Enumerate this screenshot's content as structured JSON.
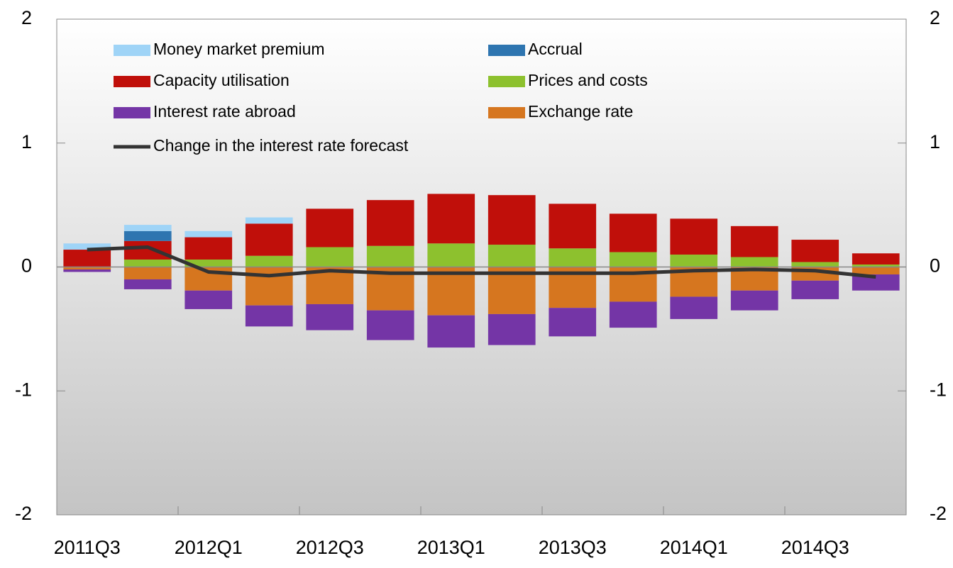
{
  "chart_data": {
    "type": "bar",
    "categories": [
      "2011Q3",
      null,
      "2012Q1",
      null,
      "2012Q3",
      null,
      "2013Q1",
      null,
      "2013Q3",
      null,
      "2014Q1",
      null,
      "2014Q3",
      null
    ],
    "series": [
      {
        "name": "Money market premium",
        "color": "#9fd4f7",
        "values": [
          0.05,
          0.05,
          0.05,
          0.05,
          0,
          0,
          0,
          0,
          0,
          0,
          0,
          0,
          0,
          0
        ]
      },
      {
        "name": "Accrual",
        "color": "#2e75b0",
        "values": [
          0,
          0.08,
          0,
          0,
          0,
          0,
          0,
          0,
          0,
          0,
          0,
          0,
          0,
          0
        ]
      },
      {
        "name": "Capacity utilisation",
        "color": "#c00f0a",
        "values": [
          0.14,
          0.15,
          0.18,
          0.26,
          0.31,
          0.37,
          0.4,
          0.4,
          0.36,
          0.31,
          0.29,
          0.25,
          0.18,
          0.09
        ]
      },
      {
        "name": "Prices and costs",
        "color": "#8dc12e",
        "values": [
          0,
          0.06,
          0.06,
          0.09,
          0.16,
          0.17,
          0.19,
          0.18,
          0.15,
          0.12,
          0.1,
          0.08,
          0.04,
          0.02
        ]
      },
      {
        "name": "Interest rate abroad",
        "color": "#7435a6",
        "values": [
          -0.02,
          -0.08,
          -0.15,
          -0.17,
          -0.21,
          -0.24,
          -0.26,
          -0.25,
          -0.23,
          -0.21,
          -0.18,
          -0.16,
          -0.15,
          -0.13
        ]
      },
      {
        "name": "Exchange rate",
        "color": "#d6761f",
        "values": [
          -0.02,
          -0.1,
          -0.19,
          -0.31,
          -0.3,
          -0.35,
          -0.39,
          -0.38,
          -0.33,
          -0.28,
          -0.24,
          -0.19,
          -0.11,
          -0.06
        ]
      },
      {
        "name": "Change in the interest rate forecast",
        "type": "line",
        "color": "#333333",
        "values": [
          0.14,
          0.16,
          -0.04,
          -0.07,
          -0.03,
          -0.05,
          -0.05,
          -0.05,
          -0.05,
          -0.05,
          -0.03,
          -0.02,
          -0.03,
          -0.08
        ]
      }
    ],
    "ylim": [
      -2,
      2
    ],
    "yticks": [
      -2,
      -1,
      0,
      1,
      2
    ],
    "y2lim": [
      -2,
      2
    ],
    "y2ticks": [
      -2,
      -1,
      0,
      1,
      2
    ]
  }
}
